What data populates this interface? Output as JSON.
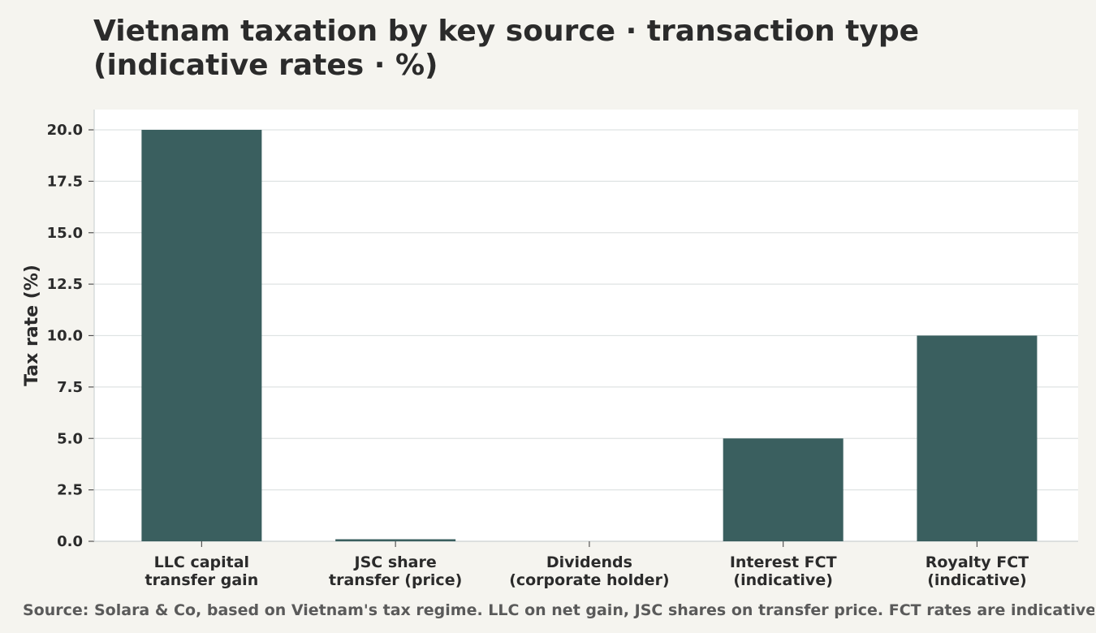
{
  "title": "Vietnam taxation by key source · transaction type (indicative rates · %)",
  "source": "Source: Solara & Co, based on Vietnam's tax regime. LLC on net gain, JSC shares on transfer price. FCT rates are indicative.",
  "colors": {
    "bar": "#3a5f5f",
    "grid": "#dfe3e3",
    "plot_bg": "#ffffff",
    "page_bg": "#f5f4ef"
  },
  "chart_data": {
    "type": "bar",
    "title": "Vietnam taxation by key source · transaction type (indicative rates · %)",
    "categories": [
      [
        "LLC capital",
        "transfer gain"
      ],
      [
        "JSC share",
        "transfer (price)"
      ],
      [
        "Dividends",
        "(corporate holder)"
      ],
      [
        "Interest FCT",
        "(indicative)"
      ],
      [
        "Royalty FCT",
        "(indicative)"
      ]
    ],
    "values": [
      20,
      0.1,
      0,
      5,
      10
    ],
    "ylabel": "Tax rate (%)",
    "xlabel": "",
    "ylim": [
      0,
      20
    ],
    "yticks": [
      "0.0",
      "2.5",
      "5.0",
      "7.5",
      "10.0",
      "12.5",
      "15.0",
      "17.5",
      "20.0"
    ],
    "grid": true,
    "legend": "none"
  }
}
